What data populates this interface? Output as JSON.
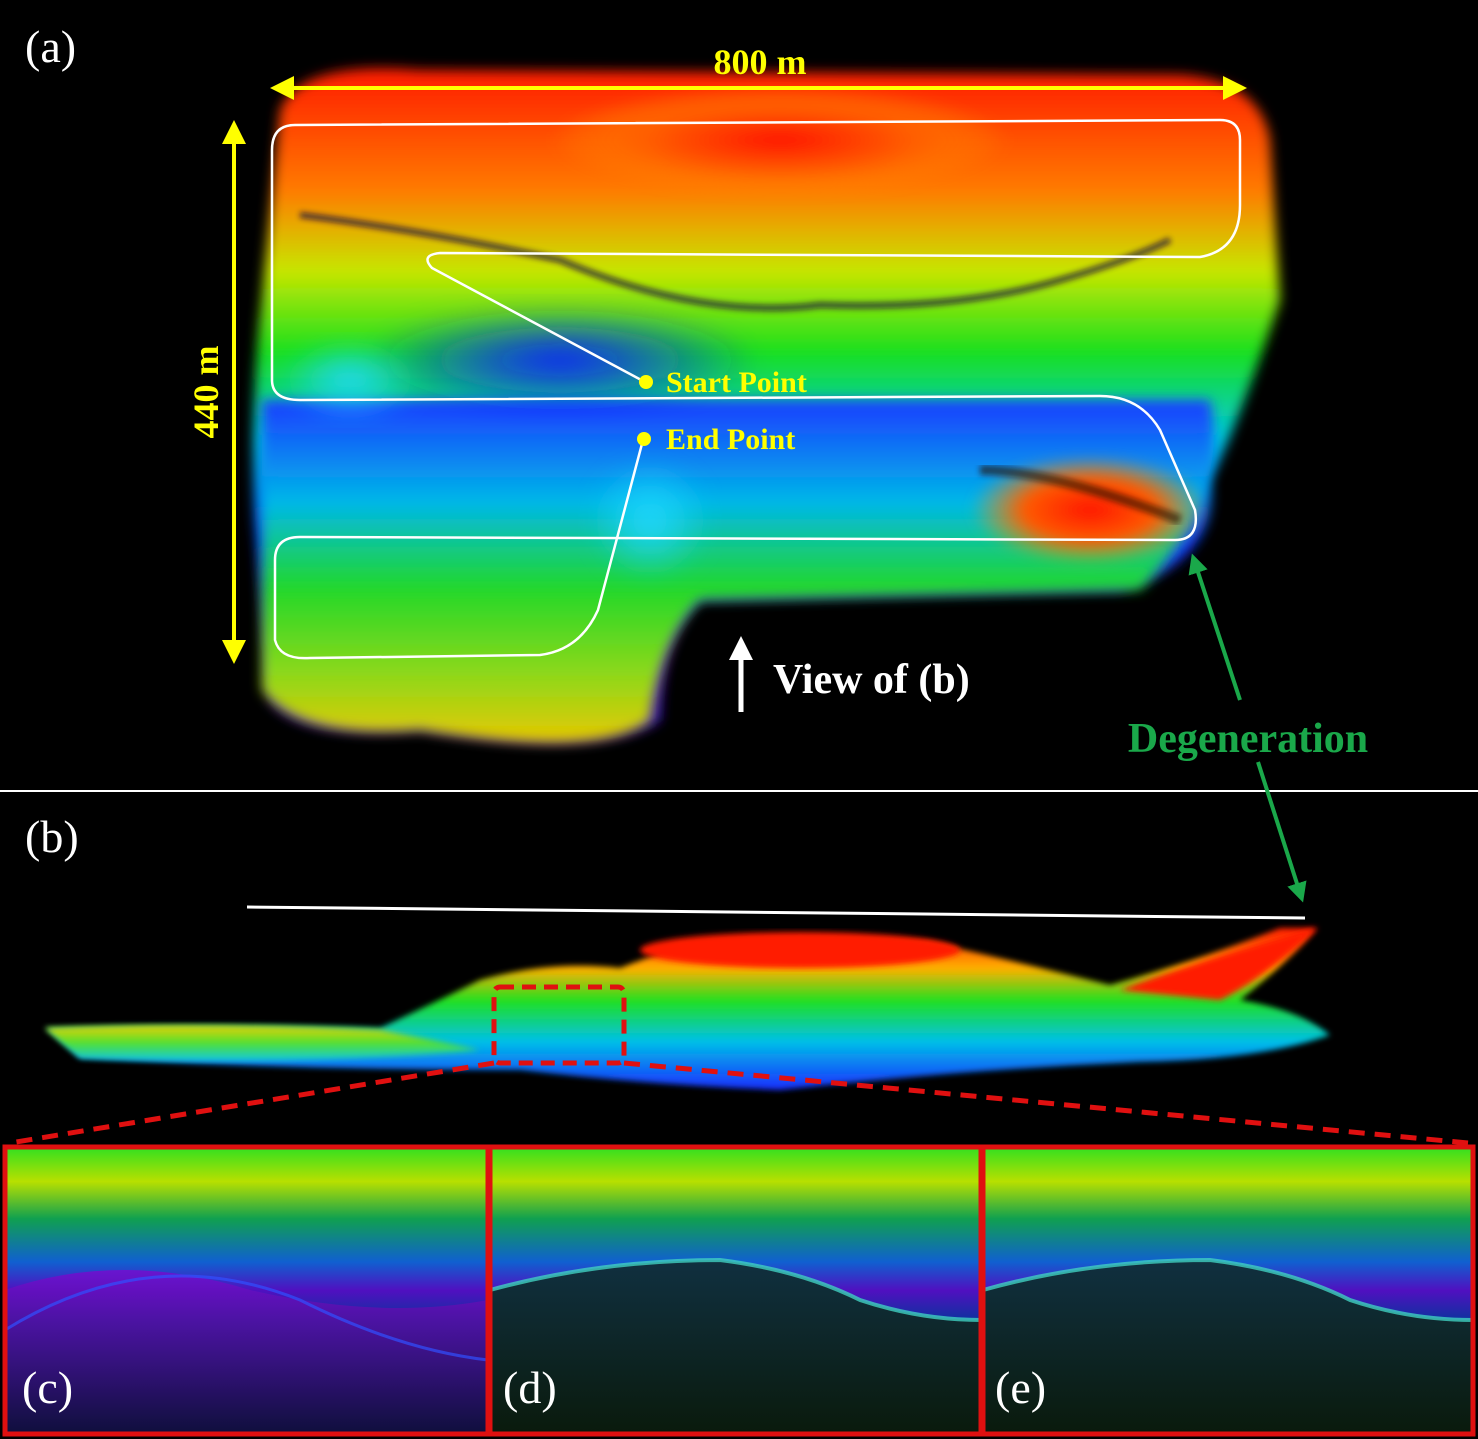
{
  "panel_a": {
    "label": "(a)",
    "width_label": "800 m",
    "height_label": "440 m",
    "start_label": "Start Point",
    "end_label": "End Point",
    "view_label": "View of (b)"
  },
  "panel_b": {
    "label": "(b)"
  },
  "annotation": {
    "degeneration_label": "Degeneration"
  },
  "insets": [
    {
      "label": "(c)"
    },
    {
      "label": "(d)"
    },
    {
      "label": "(e)"
    }
  ],
  "colors": {
    "dimension": "#ffff00",
    "degeneration": "#1aa84a",
    "highlight_box": "#e01010",
    "trajectory": "#ffffff"
  }
}
